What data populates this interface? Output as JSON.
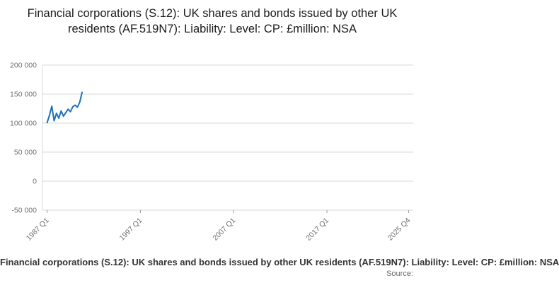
{
  "title": "Financial corporations (S.12): UK shares and bonds issued by other UK residents (AF.519N7): Liability: Level: CP: £million: NSA",
  "footer": {
    "caption": "Financial corporations (S.12): UK shares and bonds issued by other UK residents (AF.519N7): Liability: Level: CP: £million: NSA",
    "source": "Source:"
  },
  "chart_data": {
    "type": "line",
    "title": "Financial corporations (S.12): UK shares and bonds issued by other UK residents (AF.519N7): Liability: Level: CP: £million: NSA",
    "legend": false,
    "grid": true,
    "line_color": "#1d70b8",
    "grid_color": "#d9d9d9",
    "tick_color": "#999999",
    "label_color": "#707070",
    "x_axis": {
      "start": "1987 Q1",
      "end": "2025 Q4",
      "tick_labels": [
        "1987 Q1",
        "1997 Q1",
        "2007 Q1",
        "2017 Q1",
        "2025 Q4"
      ]
    },
    "y_axis": {
      "ylim": [
        -50000,
        200000
      ],
      "tick_values": [
        200000,
        150000,
        100000,
        50000,
        0,
        -50000
      ],
      "tick_labels": [
        "200 000",
        "150 000",
        "100 000",
        "50 000",
        "0",
        "-50 000"
      ]
    },
    "series": [
      {
        "name": "Financial corporations (S.12): UK shares and bonds issued by other UK residents (AF.519N7): Liability: Level: CP: £million: NSA",
        "x": [
          "1987 Q1",
          "1987 Q2",
          "1987 Q3",
          "1987 Q4",
          "1988 Q1",
          "1988 Q2",
          "1988 Q3",
          "1988 Q4",
          "1989 Q1",
          "1989 Q2",
          "1989 Q3",
          "1989 Q4",
          "1990 Q1",
          "1990 Q2",
          "1990 Q3",
          "1990 Q4"
        ],
        "values": [
          100800,
          113500,
          129000,
          104000,
          117000,
          108500,
          121000,
          112000,
          118000,
          124000,
          119500,
          128000,
          131000,
          127500,
          136000,
          153000
        ]
      }
    ]
  }
}
